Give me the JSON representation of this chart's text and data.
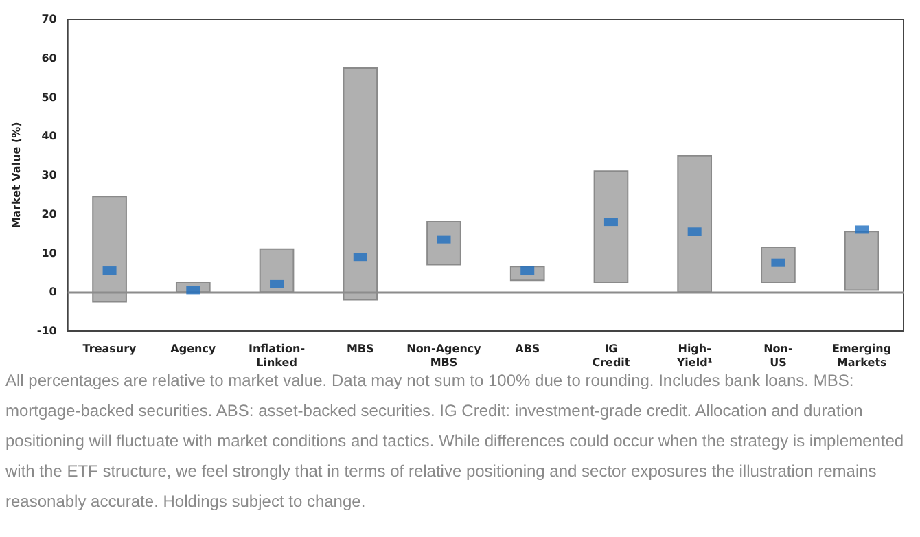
{
  "chart_data": {
    "type": "bar",
    "ylabel": "Market Value (%)",
    "categories": [
      "Treasury",
      "Agency",
      "Inflation-\nLinked",
      "MBS",
      "Non-Agency\nMBS",
      "ABS",
      "IG\nCredit",
      "High-\nYield¹",
      "Non-\nUS",
      "Emerging\nMarkets"
    ],
    "series": [
      {
        "color": "#b0b0b0",
        "base": [
          -2.5,
          0,
          0,
          -2,
          7,
          3,
          2.5,
          0,
          2.5,
          0.5
        ],
        "values": [
          27,
          2.5,
          11,
          59.5,
          11,
          3.5,
          28.5,
          35,
          9,
          15
        ]
      },
      {
        "type": "scatter",
        "color": "#1f6fc0",
        "marker": "square",
        "x": [
          "Treasury",
          "Agency",
          "Inflation-\nLinked",
          "MBS",
          "Non-Agency\nMBS",
          "ABS",
          "IG\nCredit",
          "High-\nYield¹",
          "Non-\nUS",
          "Emerging\nMarkets"
        ],
        "values": [
          5.5,
          0.5,
          2,
          9,
          13.5,
          5.5,
          18,
          15.5,
          7.5,
          16
        ]
      }
    ],
    "ylim": [
      -10,
      70
    ],
    "yticks": [
      -10,
      0,
      10,
      20,
      30,
      40,
      50,
      60,
      70
    ],
    "grid": false,
    "ref_lines": [
      {
        "axis": "y",
        "value": 0,
        "color": "#8c8c8c"
      }
    ],
    "annotations": [
      "All percentages are relative to market value. Data may not sum to 100% due to rounding. Includes bank loans. MBS: mortgage-backed securities. ABS: asset-backed securities. IG Credit: investment-grade credit. Allocation and duration positioning will fluctuate with market conditions and tactics. While differences could occur when the strategy is implemented with the ETF structure, we feel strongly that in terms of relative positioning and sector exposures the illustration remains reasonably accurate. Holdings subject to change."
    ]
  }
}
